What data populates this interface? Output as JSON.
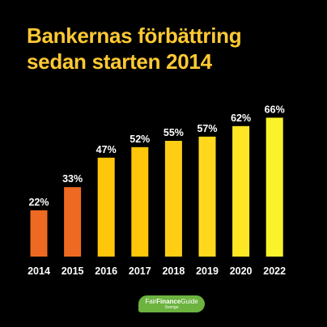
{
  "header": {
    "title_line1": "Bankernas förbättring",
    "title_line2": "sedan starten 2014"
  },
  "colors": {
    "background": "#000000",
    "title": "#FFC933",
    "orange": "#EE6A22",
    "gold_start": "#FFC60A",
    "yellow_end": "#FAF32C",
    "logo_green": "#6CB33F"
  },
  "logo": {
    "part1": "Fair",
    "part2": "Finance",
    "part3": "Guide",
    "sub": "Sverige"
  },
  "chart_data": {
    "type": "bar",
    "title": "Bankernas förbättring sedan starten 2014",
    "categories": [
      "2014",
      "2015",
      "2016",
      "2017",
      "2018",
      "2019",
      "2020",
      "2022"
    ],
    "values": [
      22,
      33,
      47,
      52,
      55,
      57,
      62,
      66
    ],
    "value_labels": [
      "22%",
      "33%",
      "47%",
      "52%",
      "55%",
      "57%",
      "62%",
      "66%"
    ],
    "bar_colors": [
      "#EE6A22",
      "#EE6A22",
      "#FFC60A",
      "#FFC60A",
      "#FFCE14",
      "#FFD81E",
      "#FDE725",
      "#FAF32C"
    ],
    "ylim": [
      0,
      100
    ],
    "grid": false,
    "legend": false
  }
}
